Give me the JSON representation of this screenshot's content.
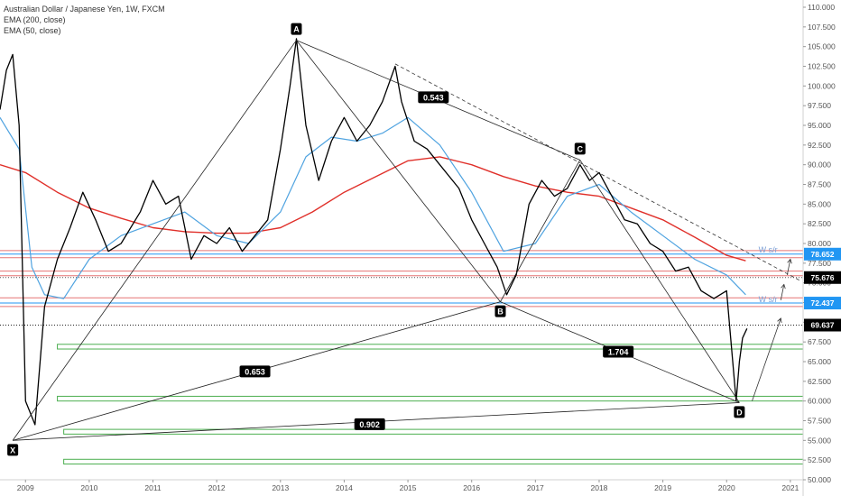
{
  "legend": {
    "title": "Australian Dollar / Japanese Yen, 1W, FXCM",
    "ema200": "EMA (200, close)",
    "ema50": "EMA (50, close)"
  },
  "colors": {
    "price": "#000000",
    "ema200": "#e0302a",
    "ema50": "#4fa3e0",
    "green_zone": "#4caf50",
    "red_line": "#e57373",
    "blue_line": "#2196f3",
    "tag_dark": "#000000",
    "tag_blue": "#2196f3"
  },
  "chart_data": {
    "type": "line",
    "title": "Australian Dollar / Japanese Yen, 1W, FXCM",
    "ylim": [
      50.0,
      110.0
    ],
    "xlim": [
      2008.6,
      2021.2
    ],
    "y_ticks": [
      "110.000",
      "107.500",
      "105.000",
      "102.500",
      "100.000",
      "97.500",
      "95.000",
      "92.500",
      "90.000",
      "87.500",
      "85.000",
      "82.500",
      "80.000",
      "77.500",
      "75.000",
      "72.500",
      "70.000",
      "67.500",
      "65.000",
      "62.500",
      "60.000",
      "57.500",
      "55.000",
      "52.500",
      "50.000"
    ],
    "x_ticks": [
      "2009",
      "2010",
      "2011",
      "2012",
      "2013",
      "2014",
      "2015",
      "2016",
      "2017",
      "2018",
      "2019",
      "2020",
      "2021"
    ],
    "series": [
      {
        "name": "EMA (200, close)",
        "x": [
          2008.6,
          2009.0,
          2009.5,
          2010.0,
          2010.5,
          2011.0,
          2011.5,
          2012.0,
          2012.5,
          2013.0,
          2013.5,
          2014.0,
          2014.5,
          2015.0,
          2015.5,
          2016.0,
          2016.5,
          2017.0,
          2017.5,
          2018.0,
          2018.5,
          2019.0,
          2019.5,
          2020.0,
          2020.3
        ],
        "y": [
          90.0,
          89.0,
          86.5,
          84.5,
          83.2,
          82.0,
          81.5,
          81.3,
          81.3,
          82.0,
          84.0,
          86.5,
          88.5,
          90.5,
          91.0,
          90.0,
          88.5,
          87.3,
          86.5,
          86.0,
          84.5,
          83.0,
          80.8,
          78.5,
          77.8
        ]
      },
      {
        "name": "EMA (50, close)",
        "x": [
          2008.6,
          2008.9,
          2009.1,
          2009.3,
          2009.6,
          2010.0,
          2010.5,
          2011.0,
          2011.5,
          2012.0,
          2012.5,
          2013.0,
          2013.4,
          2013.8,
          2014.2,
          2014.6,
          2015.0,
          2015.5,
          2016.0,
          2016.5,
          2017.0,
          2017.5,
          2018.0,
          2018.5,
          2019.0,
          2019.5,
          2020.0,
          2020.3
        ],
        "y": [
          96.0,
          92.0,
          77.0,
          73.5,
          73.0,
          78.0,
          81.0,
          82.5,
          84.0,
          81.0,
          80.0,
          84.0,
          91.0,
          93.5,
          93.0,
          94.0,
          96.0,
          92.5,
          86.5,
          79.0,
          80.0,
          86.0,
          87.5,
          84.0,
          81.0,
          78.0,
          76.0,
          73.5
        ]
      },
      {
        "name": "price",
        "x": [
          2008.6,
          2008.7,
          2008.8,
          2008.9,
          2009.0,
          2009.15,
          2009.3,
          2009.5,
          2009.7,
          2009.9,
          2010.1,
          2010.3,
          2010.5,
          2010.8,
          2011.0,
          2011.2,
          2011.4,
          2011.6,
          2011.8,
          2012.0,
          2012.2,
          2012.4,
          2012.6,
          2012.8,
          2013.0,
          2013.15,
          2013.25,
          2013.4,
          2013.6,
          2013.8,
          2014.0,
          2014.2,
          2014.4,
          2014.6,
          2014.8,
          2014.9,
          2015.1,
          2015.3,
          2015.5,
          2015.8,
          2016.0,
          2016.2,
          2016.4,
          2016.55,
          2016.7,
          2016.9,
          2017.1,
          2017.3,
          2017.5,
          2017.7,
          2017.85,
          2018.0,
          2018.2,
          2018.4,
          2018.6,
          2018.8,
          2019.0,
          2019.2,
          2019.4,
          2019.6,
          2019.8,
          2020.0,
          2020.15,
          2020.2,
          2020.25,
          2020.32
        ],
        "y": [
          97.0,
          102.0,
          104.0,
          95.0,
          60.0,
          57.0,
          72.0,
          78.0,
          82.0,
          86.5,
          83.0,
          79.0,
          80.0,
          84.0,
          88.0,
          85.0,
          86.0,
          78.0,
          81.0,
          80.0,
          82.0,
          79.0,
          81.0,
          83.0,
          92.0,
          100.0,
          106.0,
          95.0,
          88.0,
          93.0,
          96.0,
          93.0,
          95.0,
          98.0,
          102.5,
          98.0,
          93.0,
          92.0,
          90.0,
          87.0,
          83.0,
          80.0,
          77.0,
          73.5,
          76.0,
          85.0,
          88.0,
          86.0,
          87.0,
          90.0,
          88.0,
          89.0,
          86.0,
          83.0,
          82.5,
          80.0,
          79.0,
          76.5,
          77.0,
          74.0,
          73.0,
          74.0,
          60.0,
          65.0,
          68.0,
          69.2
        ]
      }
    ],
    "points": [
      {
        "name": "X",
        "x": 2008.8,
        "y": 55.0
      },
      {
        "name": "A",
        "x": 2013.25,
        "y": 105.8
      },
      {
        "name": "B",
        "x": 2016.45,
        "y": 72.6
      },
      {
        "name": "C",
        "x": 2017.7,
        "y": 90.6
      },
      {
        "name": "D",
        "x": 2020.2,
        "y": 59.8
      }
    ],
    "ratios": [
      {
        "label": "0.543",
        "x": 2015.4,
        "y": 98.5
      },
      {
        "label": "1.704",
        "x": 2018.3,
        "y": 66.2
      },
      {
        "label": "0.653",
        "x": 2012.6,
        "y": 63.7
      },
      {
        "label": "0.902",
        "x": 2014.4,
        "y": 57.0
      }
    ],
    "zones": [
      {
        "y1": 67.2,
        "y2": 66.6,
        "x1": 2009.5
      },
      {
        "y1": 60.6,
        "y2": 60.0,
        "x1": 2009.5
      },
      {
        "y1": 56.4,
        "y2": 55.8,
        "x1": 2009.6
      },
      {
        "y1": 52.6,
        "y2": 52.0,
        "x1": 2009.6
      }
    ],
    "hlines": [
      {
        "y": 78.652,
        "label": "78.652",
        "kind": "blue"
      },
      {
        "y": 75.676,
        "label": "75.676",
        "kind": "dotted"
      },
      {
        "y": 72.437,
        "label": "72.437",
        "kind": "blue"
      },
      {
        "y": 69.637,
        "label": "69.637",
        "kind": "dark"
      }
    ],
    "red_lines": [
      79.1,
      78.2,
      76.5,
      75.9,
      73.1,
      72.0
    ],
    "annotations": [
      {
        "text": "W s/r",
        "x": 2020.65,
        "y": 79.2
      },
      {
        "text": "W s/r",
        "x": 2020.65,
        "y": 72.9
      }
    ]
  }
}
